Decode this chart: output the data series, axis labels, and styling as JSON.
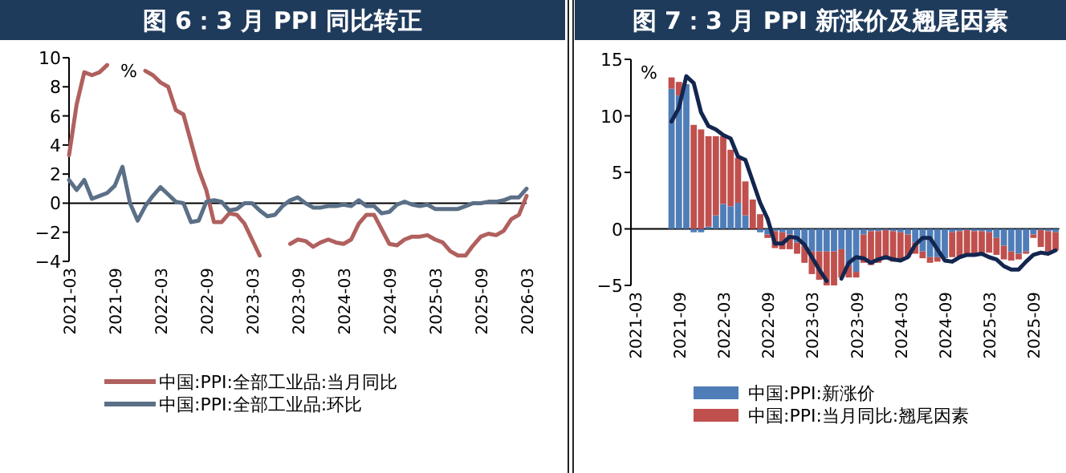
{
  "chart_data": [
    {
      "type": "line",
      "title": "图 6：3 月 PPI 同比转正",
      "ylabel": "%",
      "legend": "bottom",
      "ylim": [
        -4,
        10
      ],
      "yticks": [
        -4,
        -2,
        0,
        2,
        4,
        6,
        8,
        10
      ],
      "categories": [
        "2021-03",
        null,
        null,
        null,
        null,
        null,
        "2021-09",
        null,
        null,
        null,
        null,
        null,
        "2022-03",
        null,
        null,
        null,
        null,
        null,
        "2022-09",
        null,
        null,
        null,
        null,
        null,
        "2023-03",
        null,
        null,
        null,
        null,
        null,
        "2023-09",
        null,
        null,
        null,
        null,
        null,
        "2024-03",
        null,
        null,
        null,
        null,
        null,
        "2024-09",
        null,
        null,
        null,
        null,
        null,
        "2025-03",
        null,
        null,
        null,
        null,
        null,
        "2025-09",
        null,
        null,
        null,
        null,
        null,
        "2026-03"
      ],
      "series": [
        {
          "name": "中国:PPI:全部工业品:当月同比",
          "color": "#b0605e",
          "values": [
            3.3,
            6.8,
            9.0,
            8.8,
            9.0,
            9.5,
            null,
            null,
            null,
            null,
            9.1,
            8.8,
            8.3,
            8.0,
            6.4,
            6.1,
            4.2,
            2.3,
            0.9,
            -1.3,
            -1.3,
            -0.7,
            -0.8,
            -1.4,
            -2.5,
            -3.6,
            null,
            null,
            null,
            -2.8,
            -2.5,
            -2.6,
            -3.0,
            -2.7,
            -2.5,
            -2.7,
            -2.8,
            -2.5,
            -1.4,
            -0.8,
            -0.8,
            -1.8,
            -2.8,
            -2.9,
            -2.5,
            -2.3,
            -2.3,
            -2.2,
            -2.5,
            -2.7,
            -3.3,
            -3.6,
            -3.6,
            -2.9,
            -2.3,
            -2.1,
            -2.2,
            -1.9,
            -1.1,
            -0.8,
            0.5
          ]
        },
        {
          "name": "中国:PPI:全部工业品:环比",
          "color": "#5b7087",
          "values": [
            1.6,
            0.9,
            1.6,
            0.3,
            0.5,
            0.7,
            1.2,
            2.5,
            0.0,
            -1.2,
            -0.2,
            0.5,
            1.1,
            0.6,
            0.1,
            0.0,
            -1.3,
            -1.2,
            0.1,
            0.2,
            0.1,
            -0.5,
            -0.4,
            0.0,
            0.0,
            -0.5,
            -0.9,
            -0.8,
            -0.2,
            0.2,
            0.4,
            0.0,
            -0.3,
            -0.3,
            -0.2,
            -0.2,
            -0.1,
            -0.2,
            0.2,
            -0.2,
            -0.2,
            -0.7,
            -0.6,
            -0.1,
            0.1,
            -0.1,
            -0.2,
            -0.1,
            -0.4,
            -0.4,
            -0.4,
            -0.4,
            -0.2,
            0.0,
            0.0,
            0.1,
            0.1,
            0.2,
            0.4,
            0.4,
            1.0
          ]
        }
      ]
    },
    {
      "type": "bar",
      "stacked": true,
      "title": "图 7：3 月 PPI 新涨价及翘尾因素",
      "ylabel": "%",
      "legend": "bottom",
      "ylim": [
        -5,
        15
      ],
      "yticks": [
        -5,
        0,
        5,
        10,
        15
      ],
      "categories": [
        "2021-03",
        null,
        null,
        null,
        null,
        null,
        "2021-09",
        null,
        null,
        null,
        null,
        null,
        "2022-03",
        null,
        null,
        null,
        null,
        null,
        "2022-09",
        null,
        null,
        null,
        null,
        null,
        "2023-03",
        null,
        null,
        null,
        null,
        null,
        "2023-09",
        null,
        null,
        null,
        null,
        null,
        "2024-03",
        null,
        null,
        null,
        null,
        null,
        "2024-09",
        null,
        null,
        null,
        null,
        null,
        "2025-03",
        null,
        null,
        null,
        null,
        null,
        "2025-09",
        null,
        null,
        null
      ],
      "series": [
        {
          "name": "中国:PPI:新涨价",
          "color": "#4f7db8",
          "values": [
            null,
            null,
            null,
            null,
            null,
            12.4,
            11.8,
            12.8,
            -0.3,
            -0.3,
            0.2,
            1.2,
            2.2,
            2.0,
            2.3,
            1.2,
            0,
            -0.3,
            -0.5,
            -0.2,
            -0.3,
            -0.5,
            -1.2,
            -1.5,
            -2.0,
            -2.0,
            -2.0,
            -2.0,
            -1.8,
            -3.3,
            -3.8,
            -0.5,
            -0.2,
            -0.2,
            -0.1,
            -0.2,
            -0.3,
            -0.5,
            -1.2,
            -2.0,
            -2.5,
            -2.5,
            -2.6,
            -0.3,
            -0.2,
            -0.1,
            -0.2,
            -0.2,
            -0.3,
            -0.8,
            -1.5,
            -2.0,
            -2.2,
            -2.0,
            -0.5,
            -0.1,
            -0.2,
            -0.3
          ]
        },
        {
          "name": "中国:PPI:当月同比:翘尾因素",
          "color": "#c0504d",
          "values": [
            null,
            null,
            null,
            null,
            null,
            1.0,
            1.2,
            null,
            9.2,
            8.8,
            8.0,
            7.0,
            6.0,
            5.0,
            4.0,
            3.0,
            2.6,
            1.3,
            -0.3,
            -1.5,
            -1.5,
            -1.3,
            -1.0,
            -1.5,
            -2.0,
            -2.5,
            -3.0,
            -3.0,
            -2.5,
            -1.0,
            -0.5,
            -2.5,
            -3.0,
            -2.8,
            -2.6,
            -2.7,
            -2.4,
            -2.0,
            -1.0,
            -0.6,
            -0.5,
            -0.4,
            null,
            -2.2,
            -2.3,
            -2.3,
            -2.2,
            -2.0,
            -1.8,
            -1.5,
            -1.2,
            -0.8,
            -0.5,
            -0.2,
            -0.3,
            -1.5,
            -1.8,
            -1.6
          ]
        },
        {
          "type": "line",
          "color": "#13264f",
          "values": [
            null,
            null,
            null,
            null,
            null,
            9.5,
            10.7,
            13.5,
            12.9,
            10.3,
            9.1,
            8.8,
            8.3,
            8.0,
            6.4,
            6.1,
            4.2,
            2.3,
            0.9,
            -1.3,
            -1.3,
            -0.7,
            -0.8,
            -1.4,
            -2.5,
            -3.6,
            -4.6,
            null,
            -4.4,
            -3.0,
            -2.5,
            -2.6,
            -3.0,
            -2.7,
            -2.5,
            -2.7,
            -2.8,
            -2.5,
            -1.4,
            -0.8,
            -0.8,
            -1.8,
            -2.8,
            -2.9,
            -2.5,
            -2.3,
            -2.3,
            -2.2,
            -2.5,
            -2.7,
            -3.3,
            -3.6,
            -3.6,
            -2.9,
            -2.3,
            -2.1,
            -2.2,
            -1.9
          ]
        }
      ]
    }
  ]
}
